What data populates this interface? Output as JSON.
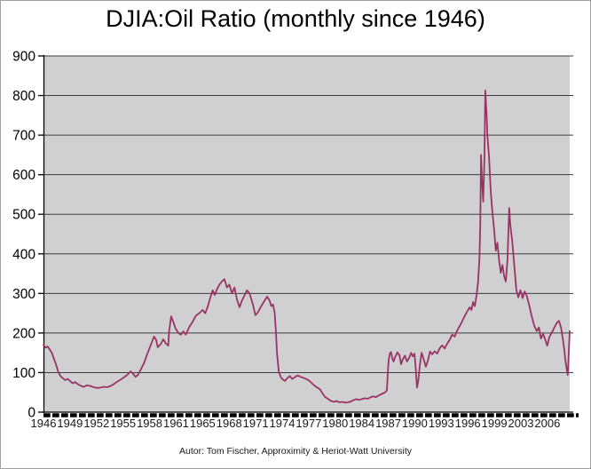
{
  "chart_data": {
    "type": "line",
    "title": "DJIA:Oil Ratio (monthly since 1946)",
    "footer": "Autor: Tom Fischer, Approximity & Heriot-Watt University",
    "xlabel": "",
    "ylabel": "",
    "xlim": [
      1946,
      2008.83
    ],
    "ylim": [
      0,
      900
    ],
    "grid": "horizontal",
    "legend": "none",
    "plot_bg_color": "#d0d0d0",
    "grid_color": "#3c3c3c",
    "axis_color": "#000000",
    "y_ticks": [
      0,
      100,
      200,
      300,
      400,
      500,
      600,
      700,
      800,
      900
    ],
    "x_ticks": [
      {
        "year": 1946.0,
        "label": "1946"
      },
      {
        "year": 1949.1667,
        "label": "1949"
      },
      {
        "year": 1952.3333,
        "label": "1952"
      },
      {
        "year": 1955.5,
        "label": "1955"
      },
      {
        "year": 1958.6667,
        "label": "1958"
      },
      {
        "year": 1961.8333,
        "label": "1961"
      },
      {
        "year": 1965.0,
        "label": "1965"
      },
      {
        "year": 1968.1667,
        "label": "1968"
      },
      {
        "year": 1971.3333,
        "label": "1971"
      },
      {
        "year": 1974.5,
        "label": "1974"
      },
      {
        "year": 1977.6667,
        "label": "1977"
      },
      {
        "year": 1980.8333,
        "label": "1980"
      },
      {
        "year": 1984.0,
        "label": "1984"
      },
      {
        "year": 1987.1667,
        "label": "1987"
      },
      {
        "year": 1990.3333,
        "label": "1990"
      },
      {
        "year": 1993.5,
        "label": "1993"
      },
      {
        "year": 1996.6667,
        "label": "1996"
      },
      {
        "year": 1999.8333,
        "label": "1999"
      },
      {
        "year": 2003.0,
        "label": "2003"
      },
      {
        "year": 2006.1667,
        "label": "2006"
      }
    ],
    "series": [
      {
        "name": "DJIA:Oil ratio",
        "color": "#993366",
        "points": [
          [
            1946.0,
            170
          ],
          [
            1946.25,
            163
          ],
          [
            1946.5,
            166
          ],
          [
            1946.75,
            158
          ],
          [
            1947.0,
            150
          ],
          [
            1947.25,
            135
          ],
          [
            1947.5,
            120
          ],
          [
            1947.75,
            103
          ],
          [
            1948.0,
            92
          ],
          [
            1948.3,
            86
          ],
          [
            1948.6,
            81
          ],
          [
            1948.9,
            84
          ],
          [
            1949.2,
            78
          ],
          [
            1949.5,
            73
          ],
          [
            1949.8,
            76
          ],
          [
            1950.0,
            72
          ],
          [
            1950.4,
            67
          ],
          [
            1950.8,
            64
          ],
          [
            1951.2,
            68
          ],
          [
            1951.6,
            66
          ],
          [
            1952.0,
            63
          ],
          [
            1952.4,
            61
          ],
          [
            1952.8,
            62
          ],
          [
            1953.2,
            64
          ],
          [
            1953.6,
            63
          ],
          [
            1954.0,
            66
          ],
          [
            1954.4,
            71
          ],
          [
            1954.8,
            77
          ],
          [
            1955.2,
            82
          ],
          [
            1955.6,
            88
          ],
          [
            1956.0,
            94
          ],
          [
            1956.4,
            103
          ],
          [
            1956.7,
            97
          ],
          [
            1957.0,
            89
          ],
          [
            1957.3,
            95
          ],
          [
            1957.6,
            107
          ],
          [
            1958.0,
            124
          ],
          [
            1958.3,
            142
          ],
          [
            1958.6,
            158
          ],
          [
            1959.0,
            180
          ],
          [
            1959.2,
            191
          ],
          [
            1959.45,
            183
          ],
          [
            1959.65,
            164
          ],
          [
            1960.0,
            172
          ],
          [
            1960.3,
            184
          ],
          [
            1960.6,
            174
          ],
          [
            1960.9,
            168
          ],
          [
            1961.0,
            205
          ],
          [
            1961.25,
            242
          ],
          [
            1961.5,
            228
          ],
          [
            1961.75,
            212
          ],
          [
            1962.1,
            200
          ],
          [
            1962.4,
            196
          ],
          [
            1962.7,
            204
          ],
          [
            1963.0,
            196
          ],
          [
            1963.4,
            215
          ],
          [
            1963.8,
            228
          ],
          [
            1964.2,
            244
          ],
          [
            1964.6,
            250
          ],
          [
            1965.0,
            258
          ],
          [
            1965.3,
            250
          ],
          [
            1965.6,
            266
          ],
          [
            1965.9,
            288
          ],
          [
            1966.2,
            308
          ],
          [
            1966.45,
            296
          ],
          [
            1966.7,
            310
          ],
          [
            1967.0,
            322
          ],
          [
            1967.3,
            330
          ],
          [
            1967.6,
            336
          ],
          [
            1967.9,
            315
          ],
          [
            1968.2,
            322
          ],
          [
            1968.5,
            300
          ],
          [
            1968.8,
            315
          ],
          [
            1969.1,
            285
          ],
          [
            1969.4,
            265
          ],
          [
            1969.7,
            282
          ],
          [
            1970.0,
            295
          ],
          [
            1970.3,
            308
          ],
          [
            1970.6,
            300
          ],
          [
            1971.0,
            272
          ],
          [
            1971.3,
            245
          ],
          [
            1971.6,
            252
          ],
          [
            1972.0,
            268
          ],
          [
            1972.4,
            282
          ],
          [
            1972.7,
            292
          ],
          [
            1973.0,
            282
          ],
          [
            1973.2,
            268
          ],
          [
            1973.4,
            272
          ],
          [
            1973.6,
            252
          ],
          [
            1973.75,
            205
          ],
          [
            1973.9,
            145
          ],
          [
            1974.1,
            102
          ],
          [
            1974.35,
            88
          ],
          [
            1974.6,
            82
          ],
          [
            1974.85,
            79
          ],
          [
            1975.1,
            86
          ],
          [
            1975.4,
            91
          ],
          [
            1975.7,
            84
          ],
          [
            1976.0,
            88
          ],
          [
            1976.35,
            93
          ],
          [
            1976.7,
            89
          ],
          [
            1977.0,
            87
          ],
          [
            1977.35,
            84
          ],
          [
            1977.7,
            80
          ],
          [
            1978.0,
            74
          ],
          [
            1978.35,
            67
          ],
          [
            1978.7,
            62
          ],
          [
            1979.0,
            58
          ],
          [
            1979.3,
            48
          ],
          [
            1979.6,
            39
          ],
          [
            1980.0,
            33
          ],
          [
            1980.35,
            28
          ],
          [
            1980.7,
            26
          ],
          [
            1981.0,
            28
          ],
          [
            1981.35,
            25
          ],
          [
            1981.7,
            26
          ],
          [
            1982.0,
            24
          ],
          [
            1982.35,
            25
          ],
          [
            1982.7,
            27
          ],
          [
            1983.0,
            30
          ],
          [
            1983.35,
            33
          ],
          [
            1983.7,
            31
          ],
          [
            1984.0,
            33
          ],
          [
            1984.35,
            35
          ],
          [
            1984.7,
            34
          ],
          [
            1985.0,
            37
          ],
          [
            1985.35,
            40
          ],
          [
            1985.7,
            38
          ],
          [
            1986.0,
            42
          ],
          [
            1986.4,
            46
          ],
          [
            1986.8,
            50
          ],
          [
            1987.0,
            55
          ],
          [
            1987.1,
            95
          ],
          [
            1987.2,
            130
          ],
          [
            1987.35,
            148
          ],
          [
            1987.5,
            152
          ],
          [
            1987.65,
            136
          ],
          [
            1987.8,
            128
          ],
          [
            1988.0,
            140
          ],
          [
            1988.25,
            151
          ],
          [
            1988.5,
            144
          ],
          [
            1988.7,
            121
          ],
          [
            1988.9,
            133
          ],
          [
            1989.15,
            143
          ],
          [
            1989.4,
            128
          ],
          [
            1989.65,
            137
          ],
          [
            1989.9,
            150
          ],
          [
            1990.1,
            141
          ],
          [
            1990.3,
            148
          ],
          [
            1990.45,
            110
          ],
          [
            1990.6,
            62
          ],
          [
            1990.75,
            80
          ],
          [
            1990.95,
            120
          ],
          [
            1991.15,
            150
          ],
          [
            1991.4,
            133
          ],
          [
            1991.65,
            115
          ],
          [
            1991.9,
            130
          ],
          [
            1992.15,
            153
          ],
          [
            1992.4,
            146
          ],
          [
            1992.7,
            154
          ],
          [
            1993.0,
            148
          ],
          [
            1993.3,
            161
          ],
          [
            1993.6,
            169
          ],
          [
            1993.9,
            161
          ],
          [
            1994.2,
            173
          ],
          [
            1994.5,
            183
          ],
          [
            1994.8,
            196
          ],
          [
            1995.1,
            191
          ],
          [
            1995.4,
            206
          ],
          [
            1995.7,
            218
          ],
          [
            1996.0,
            230
          ],
          [
            1996.3,
            243
          ],
          [
            1996.6,
            255
          ],
          [
            1996.9,
            265
          ],
          [
            1997.1,
            258
          ],
          [
            1997.3,
            278
          ],
          [
            1997.5,
            268
          ],
          [
            1997.7,
            295
          ],
          [
            1997.9,
            330
          ],
          [
            1998.05,
            390
          ],
          [
            1998.15,
            470
          ],
          [
            1998.25,
            650
          ],
          [
            1998.35,
            590
          ],
          [
            1998.5,
            532
          ],
          [
            1998.65,
            640
          ],
          [
            1998.75,
            813
          ],
          [
            1998.9,
            755
          ],
          [
            1999.0,
            700
          ],
          [
            1999.2,
            645
          ],
          [
            1999.4,
            558
          ],
          [
            1999.6,
            505
          ],
          [
            1999.8,
            462
          ],
          [
            2000.0,
            408
          ],
          [
            2000.2,
            428
          ],
          [
            2000.4,
            385
          ],
          [
            2000.6,
            352
          ],
          [
            2000.8,
            372
          ],
          [
            2001.0,
            344
          ],
          [
            2001.2,
            330
          ],
          [
            2001.4,
            385
          ],
          [
            2001.6,
            516
          ],
          [
            2001.75,
            470
          ],
          [
            2001.95,
            435
          ],
          [
            2002.2,
            375
          ],
          [
            2002.45,
            310
          ],
          [
            2002.7,
            290
          ],
          [
            2002.95,
            308
          ],
          [
            2003.2,
            288
          ],
          [
            2003.45,
            305
          ],
          [
            2003.7,
            294
          ],
          [
            2004.0,
            270
          ],
          [
            2004.3,
            242
          ],
          [
            2004.6,
            218
          ],
          [
            2004.9,
            205
          ],
          [
            2005.15,
            214
          ],
          [
            2005.4,
            186
          ],
          [
            2005.65,
            198
          ],
          [
            2005.9,
            184
          ],
          [
            2006.15,
            168
          ],
          [
            2006.4,
            190
          ],
          [
            2006.7,
            201
          ],
          [
            2007.0,
            214
          ],
          [
            2007.3,
            226
          ],
          [
            2007.55,
            231
          ],
          [
            2007.8,
            213
          ],
          [
            2008.0,
            186
          ],
          [
            2008.2,
            155
          ],
          [
            2008.3,
            132
          ],
          [
            2008.45,
            112
          ],
          [
            2008.6,
            94
          ],
          [
            2008.83,
            205
          ]
        ]
      }
    ]
  }
}
